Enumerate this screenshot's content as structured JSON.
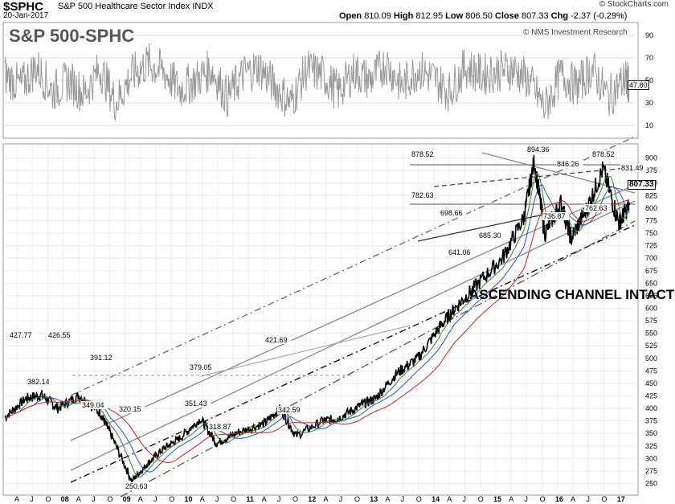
{
  "header": {
    "symbol": "$SPHC",
    "name": "S&P 500 Healthcare Sector Index",
    "exchange": "INDX",
    "date": "20-Jan-2017",
    "open_label": "Open",
    "open": "810.09",
    "high_label": "High",
    "high": "812.95",
    "low_label": "Low",
    "low": "806.50",
    "close_label": "Close",
    "close": "807.33",
    "chg_label": "Chg",
    "chg": "-2.37 (-0.29%)",
    "brand": "© StockCharts.com"
  },
  "chart_data": [
    {
      "type": "line",
      "title": "S&P 500-SPHC",
      "subtitle": "© NMS Investment Research",
      "ylim": [
        0,
        100
      ],
      "yticks": [
        10,
        30,
        50,
        70,
        90
      ],
      "last_value": "47.80",
      "series": [
        {
          "x": [
            "2007-03",
            "2007-06",
            "2007-09",
            "2007-12",
            "2008-03",
            "2008-06",
            "2008-09",
            "2008-12",
            "2009-03",
            "2009-06",
            "2009-09",
            "2009-12",
            "2010-03",
            "2010-06",
            "2010-09",
            "2010-12",
            "2011-03",
            "2011-06",
            "2011-09",
            "2011-12",
            "2012-03",
            "2012-06",
            "2012-09",
            "2012-12",
            "2013-03",
            "2013-06",
            "2013-09",
            "2013-12",
            "2014-03",
            "2014-06",
            "2014-09",
            "2014-12",
            "2015-03",
            "2015-06",
            "2015-09",
            "2015-12",
            "2016-03",
            "2016-06",
            "2016-09",
            "2016-12",
            "2017-01"
          ],
          "y": [
            55,
            45,
            62,
            40,
            50,
            38,
            60,
            30,
            55,
            65,
            58,
            42,
            50,
            60,
            35,
            55,
            62,
            45,
            30,
            60,
            55,
            40,
            58,
            50,
            65,
            45,
            60,
            52,
            40,
            62,
            55,
            58,
            60,
            50,
            25,
            55,
            45,
            60,
            35,
            50,
            48
          ]
        }
      ]
    },
    {
      "type": "line",
      "xlabel": "",
      "ylabel": "",
      "ylim": [
        230,
        925
      ],
      "yticks": [
        250,
        275,
        300,
        325,
        350,
        375,
        400,
        425,
        450,
        475,
        500,
        525,
        550,
        575,
        600,
        625,
        650,
        675,
        700,
        725,
        750,
        775,
        800,
        825,
        850,
        875,
        900
      ],
      "x_tick_labels": [
        "A",
        "J",
        "O",
        "08",
        "A",
        "J",
        "O",
        "09",
        "A",
        "J",
        "O",
        "10",
        "A",
        "J",
        "O",
        "11",
        "A",
        "J",
        "O",
        "12",
        "A",
        "J",
        "O",
        "13",
        "A",
        "J",
        "O",
        "14",
        "A",
        "J",
        "O",
        "15",
        "A",
        "J",
        "O",
        "16",
        "A",
        "J",
        "O",
        "17"
      ],
      "last_value": "807.33",
      "annotation_text": "ASCENDING CHANNEL INTACT",
      "price_labels": [
        "427.77",
        "426.55",
        "382.14",
        "391.12",
        "349.04",
        "320.15",
        "250.63",
        "379.05",
        "351.43",
        "318.87",
        "421.69",
        "342.59",
        "698.66",
        "641.06",
        "685.30",
        "878.52",
        "894.36",
        "846.26",
        "878.52",
        "831.49",
        "782.63",
        "736.87",
        "762.63"
      ],
      "series": [
        {
          "x": [
            "2007-03",
            "2007-07",
            "2007-10",
            "2008-01",
            "2008-05",
            "2008-09",
            "2008-11",
            "2009-03",
            "2009-06",
            "2009-09",
            "2009-12",
            "2010-04",
            "2010-07",
            "2010-11",
            "2011-04",
            "2011-07",
            "2011-10",
            "2012-03",
            "2012-06",
            "2012-10",
            "2013-01",
            "2013-05",
            "2013-09",
            "2014-01",
            "2014-04",
            "2014-08",
            "2015-01",
            "2015-05",
            "2015-07",
            "2015-09",
            "2015-12",
            "2016-02",
            "2016-05",
            "2016-08",
            "2016-11",
            "2017-01"
          ],
          "y": [
            382,
            420,
            427,
            400,
            426,
            391,
            349,
            255,
            290,
            320,
            340,
            379,
            330,
            352,
            370,
            400,
            345,
            375,
            380,
            405,
            420,
            470,
            500,
            560,
            600,
            645,
            700,
            780,
            894,
            750,
            810,
            740,
            800,
            878,
            770,
            807
          ]
        }
      ]
    }
  ]
}
